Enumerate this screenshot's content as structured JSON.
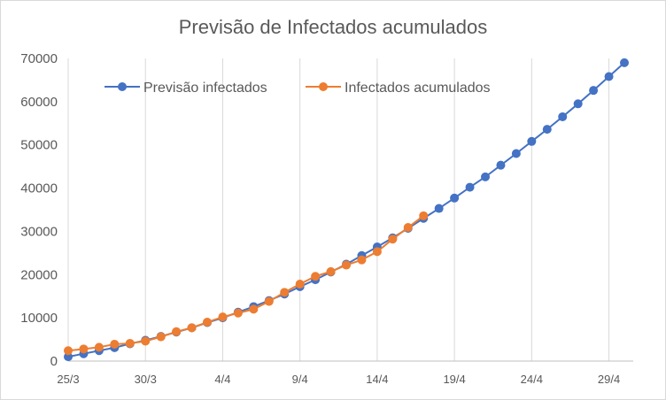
{
  "chart_data": {
    "type": "line",
    "title": "Previsão de Infectados acumulados",
    "xlabel": "",
    "ylabel": "",
    "ylim": [
      0,
      70000
    ],
    "yticks": [
      0,
      10000,
      20000,
      30000,
      40000,
      50000,
      60000,
      70000
    ],
    "xrange": [
      "25/3",
      "30/4"
    ],
    "xticks": [
      "25/3",
      "30/3",
      "4/4",
      "9/4",
      "14/4",
      "19/4",
      "24/4",
      "29/4"
    ],
    "grid": "vertical",
    "legend": "top-left",
    "series": [
      {
        "name": "Previsão infectados",
        "color": "#4472C4",
        "x": [
          "25/3",
          "26/3",
          "27/3",
          "28/3",
          "29/3",
          "30/3",
          "31/3",
          "1/4",
          "2/4",
          "3/4",
          "4/4",
          "5/4",
          "6/4",
          "7/4",
          "8/4",
          "9/4",
          "10/4",
          "11/4",
          "12/4",
          "13/4",
          "14/4",
          "15/4",
          "16/4",
          "17/4",
          "18/4",
          "19/4",
          "20/4",
          "21/4",
          "22/4",
          "23/4",
          "24/4",
          "25/4",
          "26/4",
          "27/4",
          "28/4",
          "29/4",
          "30/4"
        ],
        "values": [
          1000,
          1700,
          2400,
          3100,
          4000,
          4800,
          5700,
          6700,
          7700,
          8900,
          10000,
          11300,
          12600,
          14000,
          15500,
          17200,
          18800,
          20600,
          22400,
          24400,
          26400,
          28500,
          30700,
          33000,
          35300,
          37700,
          40200,
          42600,
          45300,
          48000,
          50800,
          53600,
          56500,
          59500,
          62600,
          65800,
          69000
        ]
      },
      {
        "name": "Infectados acumulados",
        "color": "#ED7D31",
        "x": [
          "25/3",
          "26/3",
          "27/3",
          "28/3",
          "29/3",
          "30/3",
          "31/3",
          "1/4",
          "2/4",
          "3/4",
          "4/4",
          "5/4",
          "6/4",
          "7/4",
          "8/4",
          "9/4",
          "10/4",
          "11/4",
          "12/4",
          "13/4",
          "14/4",
          "15/4",
          "16/4",
          "17/4"
        ],
        "values": [
          2400,
          2800,
          3200,
          3900,
          4100,
          4600,
          5600,
          6800,
          7700,
          9000,
          10200,
          11100,
          12000,
          13800,
          15900,
          17800,
          19600,
          20700,
          22200,
          23400,
          25300,
          28200,
          30900,
          33600
        ]
      }
    ]
  }
}
